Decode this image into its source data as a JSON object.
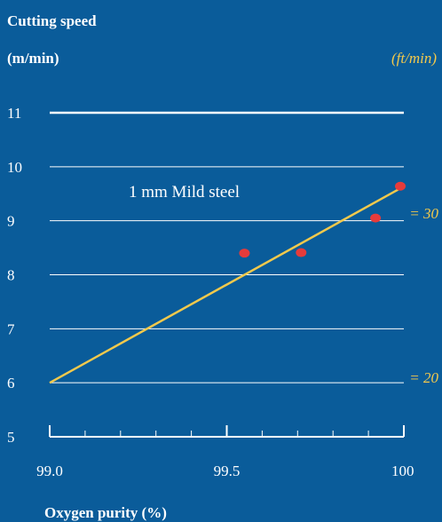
{
  "chart_data": {
    "type": "scatter",
    "title": "Cutting speed",
    "ylabel": "(m/min)",
    "ylabel_right": "(ft/min)",
    "xlabel": "Oxygen purity (%)",
    "annotation": "1 mm Mild steel",
    "xlim": [
      99.0,
      100.0
    ],
    "ylim": [
      5,
      11
    ],
    "x_ticks": [
      {
        "value": 99.0,
        "label": "99.0"
      },
      {
        "value": 99.5,
        "label": "99.5"
      },
      {
        "value": 100.0,
        "label": "100"
      }
    ],
    "y_ticks": [
      {
        "value": 5,
        "label": "5"
      },
      {
        "value": 6,
        "label": "6"
      },
      {
        "value": 7,
        "label": "7"
      },
      {
        "value": 8,
        "label": "8"
      },
      {
        "value": 9,
        "label": "9"
      },
      {
        "value": 10,
        "label": "10"
      },
      {
        "value": 11,
        "label": "11"
      }
    ],
    "right_ticks": [
      {
        "y": 9.14,
        "label": "= 30"
      },
      {
        "y": 6.1,
        "label": "= 20"
      }
    ],
    "points": [
      {
        "x": 99.55,
        "y": 8.4
      },
      {
        "x": 99.71,
        "y": 8.41
      },
      {
        "x": 99.92,
        "y": 9.05
      },
      {
        "x": 99.99,
        "y": 9.64
      }
    ],
    "trend_line": [
      {
        "x": 99.0,
        "y": 6.0
      },
      {
        "x": 99.99,
        "y": 9.6
      }
    ],
    "colors": {
      "background": "#0a5c9a",
      "text": "#ffffff",
      "imperial_text": "#f2c94c",
      "trend": "#f2c94c",
      "points": "#e63b3b",
      "grid": "#ffffff"
    }
  }
}
